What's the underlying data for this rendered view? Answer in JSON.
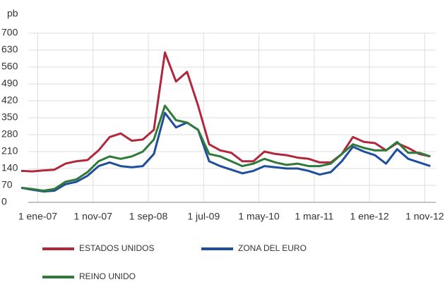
{
  "chart_data": {
    "type": "line",
    "y_label": "pb",
    "x": [
      -3,
      -1,
      1,
      3,
      5,
      7,
      9,
      11,
      13,
      15,
      17,
      19,
      21,
      23,
      25,
      27,
      29,
      31,
      33,
      35,
      37,
      39,
      41,
      43,
      45,
      47,
      49,
      51,
      53,
      55,
      57,
      59,
      61,
      63,
      65,
      67,
      69,
      71
    ],
    "xlim": [
      -3,
      72
    ],
    "xticks": [
      {
        "value": 0,
        "label": "1 ene-07"
      },
      {
        "value": 10,
        "label": "1 nov-07"
      },
      {
        "value": 20,
        "label": "1 sep-08"
      },
      {
        "value": 30,
        "label": "1 jul-09"
      },
      {
        "value": 40,
        "label": "1 may-10"
      },
      {
        "value": 50,
        "label": "1 mar-11"
      },
      {
        "value": 60,
        "label": "1 ene-12"
      },
      {
        "value": 70,
        "label": "1 nov-12"
      }
    ],
    "ylim": [
      0,
      700
    ],
    "yticks": [
      0,
      70,
      140,
      210,
      280,
      350,
      420,
      490,
      560,
      630,
      700
    ],
    "grid": true,
    "series": [
      {
        "name": "ESTADOS UNIDOS",
        "color": "#b0283c",
        "values": [
          130,
          128,
          132,
          135,
          160,
          170,
          175,
          215,
          270,
          285,
          255,
          260,
          300,
          620,
          500,
          540,
          400,
          240,
          215,
          205,
          170,
          170,
          210,
          200,
          195,
          185,
          180,
          165,
          165,
          200,
          270,
          250,
          245,
          215,
          245,
          225,
          200,
          190
        ]
      },
      {
        "name": "ZONA DEL EURO",
        "color": "#1f4e9c",
        "values": [
          60,
          52,
          45,
          48,
          75,
          85,
          110,
          150,
          165,
          150,
          145,
          150,
          200,
          370,
          310,
          330,
          300,
          170,
          150,
          135,
          120,
          130,
          150,
          145,
          140,
          140,
          130,
          115,
          125,
          170,
          230,
          210,
          195,
          160,
          220,
          180,
          165,
          150
        ]
      },
      {
        "name": "REINO UNIDO",
        "color": "#2f7a3a",
        "values": [
          60,
          55,
          48,
          55,
          85,
          95,
          125,
          170,
          190,
          180,
          190,
          210,
          260,
          400,
          340,
          330,
          300,
          200,
          190,
          170,
          150,
          160,
          180,
          165,
          155,
          160,
          150,
          150,
          160,
          200,
          240,
          225,
          215,
          215,
          250,
          205,
          205,
          190
        ]
      }
    ]
  }
}
